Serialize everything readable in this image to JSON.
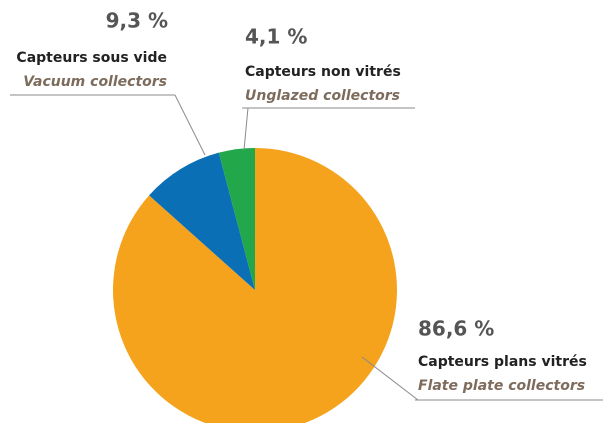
{
  "chart_data": {
    "type": "pie",
    "categories": [
      "Capteurs plans vitrés",
      "Capteurs sous vide",
      "Capteurs non vitrés"
    ],
    "categories_en": [
      "Flate plate collectors",
      "Vacuum collectors",
      "Unglazed collectors"
    ],
    "values": [
      86.6,
      9.3,
      4.1
    ],
    "value_labels": [
      "86,6 %",
      "9,3 %",
      "4,1 %"
    ],
    "colors": [
      "#f5a31c",
      "#0a6fb5",
      "#22a84a"
    ],
    "start_angle": 0,
    "direction": "clockwise"
  }
}
